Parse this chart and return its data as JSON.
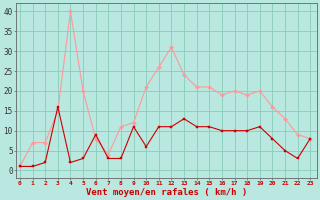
{
  "hours": [
    0,
    1,
    2,
    3,
    4,
    5,
    6,
    7,
    8,
    9,
    10,
    11,
    12,
    13,
    14,
    15,
    16,
    17,
    18,
    19,
    20,
    21,
    22,
    23
  ],
  "wind_avg": [
    1,
    1,
    2,
    16,
    2,
    3,
    9,
    3,
    3,
    11,
    6,
    11,
    11,
    13,
    11,
    11,
    10,
    10,
    10,
    11,
    8,
    5,
    3,
    8
  ],
  "wind_gust": [
    1,
    7,
    7,
    15,
    40,
    20,
    8,
    4,
    11,
    12,
    21,
    26,
    31,
    24,
    21,
    21,
    19,
    20,
    19,
    20,
    16,
    13,
    9,
    8
  ],
  "bg_color": "#b8e8e0",
  "grid_color": "#88ccbb",
  "line_avg_color": "#cc0000",
  "line_gust_color": "#ff9999",
  "xlabel": "Vent moyen/en rafales ( km/h )",
  "ylabel_ticks": [
    0,
    5,
    10,
    15,
    20,
    25,
    30,
    35,
    40
  ],
  "ylim": [
    -2,
    42
  ],
  "xlim": [
    -0.3,
    23.5
  ]
}
